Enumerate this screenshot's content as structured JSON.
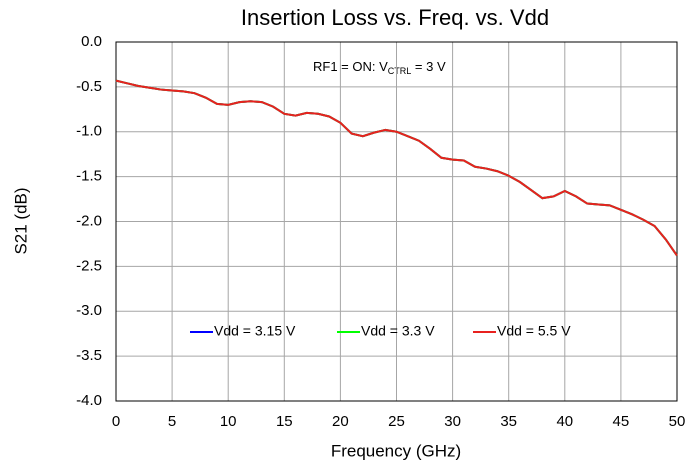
{
  "chart_data": {
    "type": "line",
    "title": "Insertion Loss vs. Freq. vs. Vdd",
    "xlabel": "Frequency (GHz)",
    "ylabel": "S21 (dB)",
    "annotation": {
      "main": "RF1 = ON: V",
      "sub": "CTRL",
      "tail": " = 3 V"
    },
    "x": [
      0,
      1,
      2,
      3,
      4,
      5,
      6,
      7,
      8,
      9,
      10,
      11,
      12,
      13,
      14,
      15,
      16,
      17,
      18,
      19,
      20,
      21,
      22,
      23,
      24,
      25,
      26,
      27,
      28,
      29,
      30,
      31,
      32,
      33,
      34,
      35,
      36,
      37,
      38,
      39,
      40,
      41,
      42,
      43,
      44,
      45,
      46,
      47,
      48,
      49,
      50
    ],
    "series": [
      {
        "name": "Vdd = 3.15 V",
        "color": "#0000ff",
        "values": [
          -0.43,
          -0.46,
          -0.49,
          -0.51,
          -0.53,
          -0.54,
          -0.55,
          -0.57,
          -0.62,
          -0.69,
          -0.7,
          -0.67,
          -0.66,
          -0.67,
          -0.72,
          -0.8,
          -0.82,
          -0.79,
          -0.8,
          -0.83,
          -0.9,
          -1.02,
          -1.05,
          -1.01,
          -0.98,
          -1.0,
          -1.05,
          -1.1,
          -1.19,
          -1.29,
          -1.31,
          -1.32,
          -1.39,
          -1.41,
          -1.44,
          -1.49,
          -1.56,
          -1.65,
          -1.74,
          -1.72,
          -1.66,
          -1.72,
          -1.8,
          -1.81,
          -1.82,
          -1.87,
          -1.92,
          -1.98,
          -2.05,
          -2.2,
          -2.38
        ]
      },
      {
        "name": "Vdd = 3.3 V",
        "color": "#00ff00",
        "values": [
          -0.43,
          -0.46,
          -0.49,
          -0.51,
          -0.53,
          -0.54,
          -0.55,
          -0.57,
          -0.62,
          -0.69,
          -0.7,
          -0.67,
          -0.66,
          -0.67,
          -0.72,
          -0.8,
          -0.82,
          -0.79,
          -0.8,
          -0.83,
          -0.9,
          -1.02,
          -1.05,
          -1.01,
          -0.98,
          -1.0,
          -1.05,
          -1.1,
          -1.19,
          -1.29,
          -1.31,
          -1.32,
          -1.39,
          -1.41,
          -1.44,
          -1.49,
          -1.56,
          -1.65,
          -1.74,
          -1.72,
          -1.66,
          -1.72,
          -1.8,
          -1.81,
          -1.82,
          -1.87,
          -1.92,
          -1.98,
          -2.05,
          -2.2,
          -2.38
        ]
      },
      {
        "name": "Vdd = 5.5 V",
        "color": "#e8211f",
        "values": [
          -0.43,
          -0.46,
          -0.49,
          -0.51,
          -0.53,
          -0.54,
          -0.55,
          -0.57,
          -0.62,
          -0.69,
          -0.7,
          -0.67,
          -0.66,
          -0.67,
          -0.72,
          -0.8,
          -0.82,
          -0.79,
          -0.8,
          -0.83,
          -0.9,
          -1.02,
          -1.05,
          -1.01,
          -0.98,
          -1.0,
          -1.05,
          -1.1,
          -1.19,
          -1.29,
          -1.31,
          -1.32,
          -1.39,
          -1.41,
          -1.44,
          -1.49,
          -1.56,
          -1.65,
          -1.74,
          -1.72,
          -1.66,
          -1.72,
          -1.8,
          -1.81,
          -1.82,
          -1.87,
          -1.92,
          -1.98,
          -2.05,
          -2.2,
          -2.38
        ]
      }
    ],
    "xlim": [
      0,
      50
    ],
    "xticks": [
      0,
      5,
      10,
      15,
      20,
      25,
      30,
      35,
      40,
      45,
      50
    ],
    "ylim": [
      -4,
      0
    ],
    "yticks": [
      {
        "value": 0,
        "label": "0.0"
      },
      -0.5,
      {
        "value": -1,
        "label": "-1.0"
      },
      -1.5,
      {
        "value": -2,
        "label": "-2.0"
      },
      -2.5,
      {
        "value": -3,
        "label": "-3.0"
      },
      -3.5,
      {
        "value": -4,
        "label": "-4.0"
      }
    ],
    "grid": true,
    "legend": "bottom"
  }
}
